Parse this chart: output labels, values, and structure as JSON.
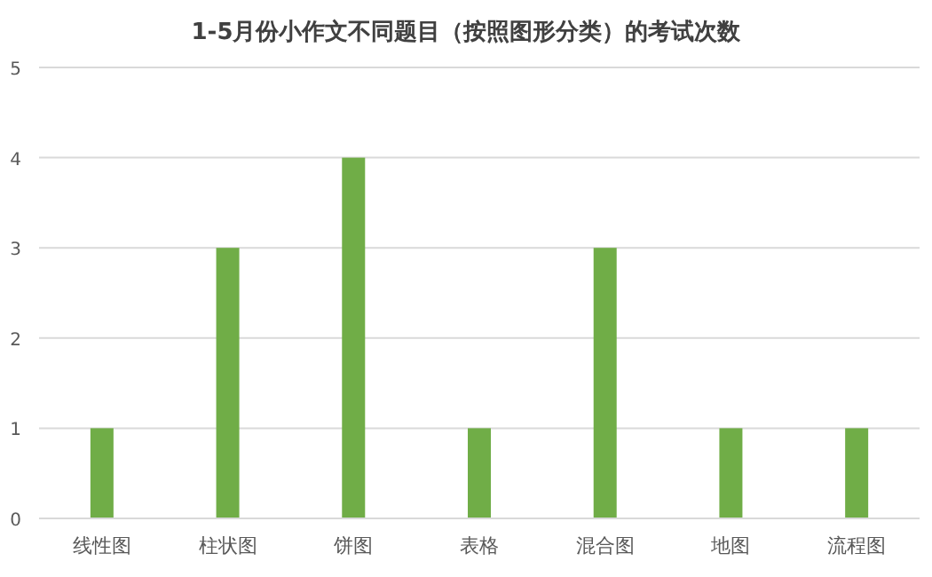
{
  "chart_data": {
    "type": "bar",
    "title": "1-5月份小作文不同题目（按照图形分类）的考试次数",
    "categories": [
      "线性图",
      "柱状图",
      "饼图",
      "表格",
      "混合图",
      "地图",
      "流程图"
    ],
    "values": [
      1,
      3,
      4,
      1,
      3,
      1,
      1
    ],
    "color": "#70ad47",
    "ylim": [
      0,
      5
    ],
    "yticks": [
      0,
      1,
      2,
      3,
      4,
      5
    ],
    "grid": "y"
  }
}
